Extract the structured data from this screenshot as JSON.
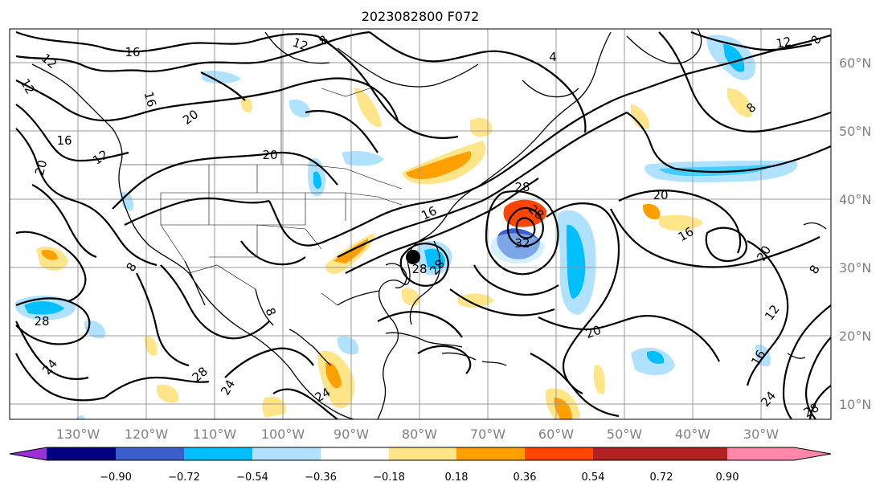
{
  "title": "2023082800 F072",
  "map": {
    "lat_labels": [
      "60°N",
      "50°N",
      "40°N",
      "30°N",
      "20°N",
      "10°N"
    ],
    "lon_labels": [
      "130°W",
      "120°W",
      "110°W",
      "100°W",
      "90°W",
      "80°W",
      "70°W",
      "60°W",
      "50°W",
      "40°W",
      "30°W"
    ],
    "contour_labels": [
      {
        "text": "16"
      },
      {
        "text": "12"
      },
      {
        "text": "8"
      },
      {
        "text": "12"
      },
      {
        "text": "12"
      },
      {
        "text": "16"
      },
      {
        "text": "20"
      },
      {
        "text": "16"
      },
      {
        "text": "20"
      },
      {
        "text": "12"
      },
      {
        "text": "20"
      },
      {
        "text": "4"
      },
      {
        "text": "8"
      },
      {
        "text": "12"
      },
      {
        "text": "28"
      },
      {
        "text": "28"
      },
      {
        "text": "20"
      },
      {
        "text": "16"
      },
      {
        "text": "20"
      },
      {
        "text": "8"
      },
      {
        "text": "8"
      },
      {
        "text": "12"
      },
      {
        "text": "16"
      },
      {
        "text": "28"
      },
      {
        "text": "24"
      },
      {
        "text": "28"
      },
      {
        "text": "24"
      },
      {
        "text": "8"
      },
      {
        "text": "24"
      },
      {
        "text": "28"
      },
      {
        "text": "24"
      },
      {
        "text": "8"
      },
      {
        "text": "28"
      },
      {
        "text": "20"
      },
      {
        "text": "28"
      },
      {
        "text": "32"
      },
      {
        "text": "16"
      }
    ]
  },
  "colorbar": {
    "colors": [
      "#9b30d9",
      "#000080",
      "#3a5fcd",
      "#00bfff",
      "#b0e2ff",
      "#ffffff",
      "#ffe58a",
      "#ffa000",
      "#ff4500",
      "#b22222",
      "#ff88aa"
    ],
    "tick_labels": [
      "−0.90",
      "−0.72",
      "−0.54",
      "−0.36",
      "−0.18",
      "0.18",
      "0.36",
      "0.54",
      "0.72",
      "0.90"
    ]
  }
}
